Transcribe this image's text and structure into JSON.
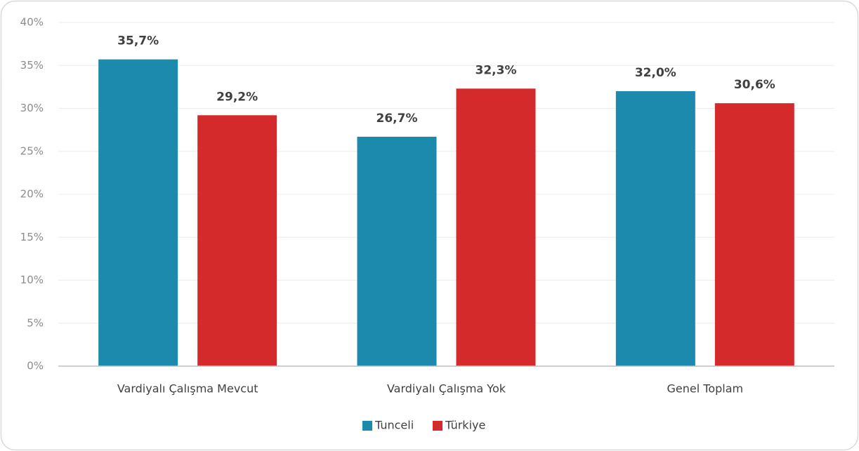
{
  "chart_data": {
    "type": "bar",
    "categories": [
      "Vardiyalı Çalışma Mevcut",
      "Vardiyalı Çalışma Yok",
      "Genel Toplam"
    ],
    "series": [
      {
        "name": "Tunceli",
        "color": "#1b8aad",
        "values": [
          35.7,
          26.7,
          32.0
        ],
        "value_labels": [
          "35,7%",
          "26,7%",
          "32,0%"
        ]
      },
      {
        "name": "Türkiye",
        "color": "#d42a2b",
        "values": [
          29.2,
          32.3,
          30.6
        ],
        "value_labels": [
          "29,2%",
          "32,3%",
          "30,6%"
        ]
      }
    ],
    "ylim": [
      0,
      40
    ],
    "yticks": [
      {
        "value": 0,
        "label": "0%"
      },
      {
        "value": 5,
        "label": "5%"
      },
      {
        "value": 10,
        "label": "10%"
      },
      {
        "value": 15,
        "label": "15%"
      },
      {
        "value": 20,
        "label": "20%"
      },
      {
        "value": 25,
        "label": "25%"
      },
      {
        "value": 30,
        "label": "30%"
      },
      {
        "value": 35,
        "label": "35%"
      },
      {
        "value": 40,
        "label": "40%"
      }
    ],
    "grid": true,
    "legend": "bottom"
  }
}
